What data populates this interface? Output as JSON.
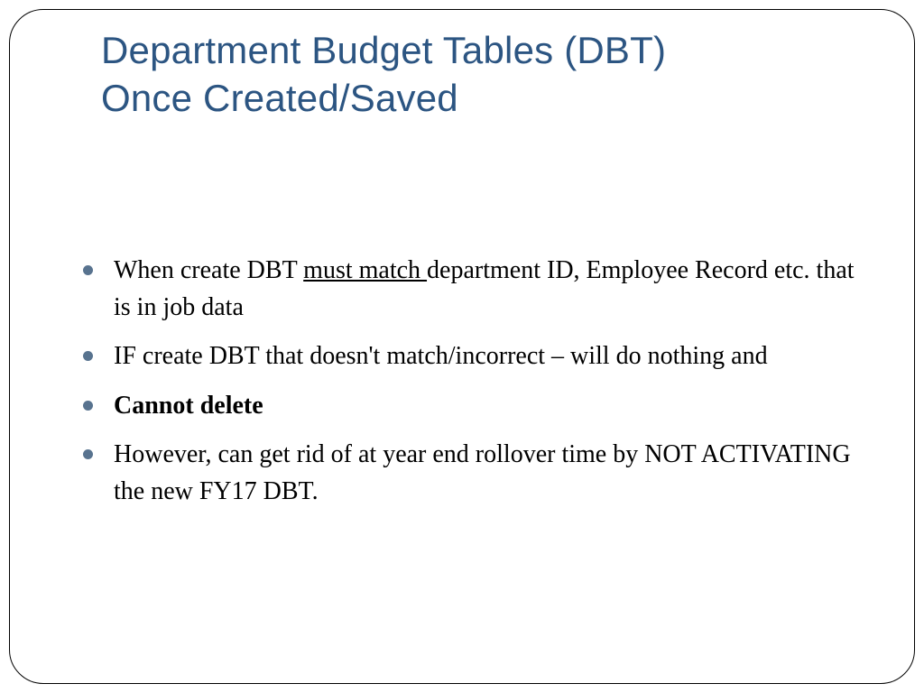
{
  "slide": {
    "title_line1": "Department Budget Tables (DBT)",
    "title_line2": "Once Created/Saved",
    "bullets": [
      {
        "pre": "When create DBT ",
        "underlined": "must match ",
        "post": "department ID, Employee Record etc. that is in job data"
      },
      {
        "pre": "IF create DBT that doesn't match/incorrect – will do nothing and",
        "underlined": "",
        "post": ""
      },
      {
        "bold": "Cannot delete"
      },
      {
        "pre": "However, can get rid of at year end rollover time by NOT ACTIVATING the new FY17 DBT.",
        "underlined": "",
        "post": ""
      }
    ],
    "colors": {
      "title": "#2c5582",
      "bullet_marker": "#58738f",
      "text": "#000000",
      "frame_border": "#000000",
      "background": "#ffffff"
    },
    "typography": {
      "title_fontsize": 42,
      "body_fontsize": 28,
      "title_font": "Segoe UI Light",
      "body_font": "Georgia"
    },
    "layout": {
      "slide_width": 1024,
      "slide_height": 768,
      "frame_border_radius": 38
    }
  }
}
